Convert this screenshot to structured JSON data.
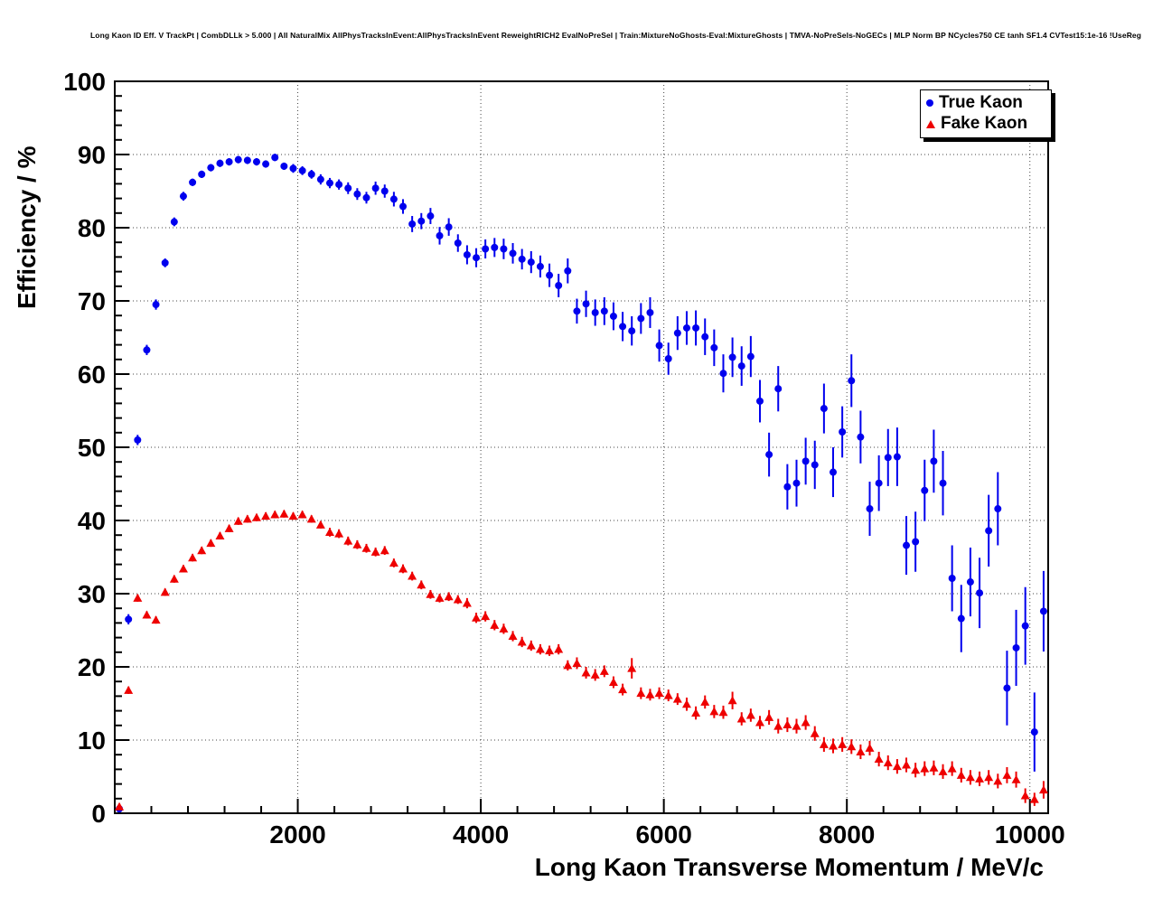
{
  "chart_data": {
    "type": "scatter",
    "title": "Long Kaon ID Eff. V TrackPt | CombDLLk > 5.000 | All NaturalMix AllPhysTracksInEvent:AllPhysTracksInEvent ReweightRICH2 EvalNoPreSel | Train:MixtureNoGhosts-Eval:MixtureGhosts | TMVA-NoPreSels-NoGECs | MLP Norm BP NCycles750 CE tanh SF1.4 CVTest15:1e-16 !UseReg",
    "xlabel": "Long Kaon Transverse Momentum / MeV/c",
    "ylabel": "Efficiency / %",
    "xlim": [
      0,
      10200
    ],
    "ylim": [
      0,
      100
    ],
    "xticks": [
      2000,
      4000,
      6000,
      8000,
      10000
    ],
    "xtick_labels": [
      "2000",
      "4000",
      "6000",
      "8000",
      "10000"
    ],
    "yticks": [
      0,
      10,
      20,
      30,
      40,
      50,
      60,
      70,
      80,
      90,
      100
    ],
    "ytick_labels": [
      "0",
      "10",
      "20",
      "30",
      "40",
      "50",
      "60",
      "70",
      "80",
      "90",
      "100"
    ],
    "x_minor_step": 400,
    "y_minor_step": 2,
    "grid": "dotted",
    "legend_position": "top-right",
    "series": [
      {
        "name": "True Kaon",
        "marker": "circle",
        "color": "#0000ee",
        "points": [
          [
            50,
            0.6,
            0.4
          ],
          [
            150,
            26.5,
            0.7
          ],
          [
            250,
            51.0,
            0.7
          ],
          [
            350,
            63.3,
            0.7
          ],
          [
            450,
            69.5,
            0.7
          ],
          [
            550,
            75.2,
            0.6
          ],
          [
            650,
            80.8,
            0.6
          ],
          [
            750,
            84.3,
            0.6
          ],
          [
            850,
            86.2,
            0.5
          ],
          [
            950,
            87.3,
            0.5
          ],
          [
            1050,
            88.2,
            0.5
          ],
          [
            1150,
            88.8,
            0.5
          ],
          [
            1250,
            89.0,
            0.5
          ],
          [
            1350,
            89.3,
            0.5
          ],
          [
            1450,
            89.2,
            0.5
          ],
          [
            1550,
            89.0,
            0.5
          ],
          [
            1650,
            88.7,
            0.5
          ],
          [
            1750,
            89.6,
            0.5
          ],
          [
            1850,
            88.4,
            0.5
          ],
          [
            1950,
            88.1,
            0.6
          ],
          [
            2050,
            87.8,
            0.6
          ],
          [
            2150,
            87.3,
            0.6
          ],
          [
            2250,
            86.6,
            0.7
          ],
          [
            2350,
            86.1,
            0.7
          ],
          [
            2450,
            85.9,
            0.7
          ],
          [
            2550,
            85.4,
            0.8
          ],
          [
            2650,
            84.6,
            0.8
          ],
          [
            2750,
            84.1,
            0.8
          ],
          [
            2850,
            85.4,
            0.9
          ],
          [
            2950,
            85.0,
            0.9
          ],
          [
            3050,
            83.9,
            1.0
          ],
          [
            3150,
            82.9,
            1.0
          ],
          [
            3250,
            80.5,
            1.1
          ],
          [
            3350,
            80.9,
            1.1
          ],
          [
            3450,
            81.6,
            1.1
          ],
          [
            3550,
            78.9,
            1.2
          ],
          [
            3650,
            80.1,
            1.2
          ],
          [
            3750,
            77.9,
            1.2
          ],
          [
            3850,
            76.3,
            1.3
          ],
          [
            3950,
            75.9,
            1.3
          ],
          [
            4050,
            77.1,
            1.3
          ],
          [
            4150,
            77.3,
            1.3
          ],
          [
            4250,
            77.1,
            1.4
          ],
          [
            4350,
            76.5,
            1.4
          ],
          [
            4450,
            75.7,
            1.4
          ],
          [
            4550,
            75.3,
            1.5
          ],
          [
            4650,
            74.7,
            1.5
          ],
          [
            4750,
            73.5,
            1.6
          ],
          [
            4850,
            72.1,
            1.6
          ],
          [
            4950,
            74.1,
            1.7
          ],
          [
            5050,
            68.6,
            1.7
          ],
          [
            5150,
            69.6,
            1.8
          ],
          [
            5250,
            68.4,
            1.8
          ],
          [
            5350,
            68.6,
            1.9
          ],
          [
            5450,
            67.9,
            1.9
          ],
          [
            5550,
            66.5,
            2.0
          ],
          [
            5650,
            65.9,
            2.0
          ],
          [
            5750,
            67.6,
            2.1
          ],
          [
            5850,
            68.4,
            2.1
          ],
          [
            5950,
            63.9,
            2.2
          ],
          [
            6050,
            62.1,
            2.2
          ],
          [
            6150,
            65.6,
            2.3
          ],
          [
            6250,
            66.3,
            2.3
          ],
          [
            6350,
            66.3,
            2.4
          ],
          [
            6450,
            65.1,
            2.5
          ],
          [
            6550,
            63.6,
            2.5
          ],
          [
            6650,
            60.1,
            2.6
          ],
          [
            6750,
            62.3,
            2.7
          ],
          [
            6850,
            61.1,
            2.7
          ],
          [
            6950,
            62.4,
            2.8
          ],
          [
            7050,
            56.3,
            2.9
          ],
          [
            7150,
            49.0,
            3.0
          ],
          [
            7250,
            58.0,
            3.1
          ],
          [
            7350,
            44.6,
            3.1
          ],
          [
            7450,
            45.1,
            3.2
          ],
          [
            7550,
            48.1,
            3.2
          ],
          [
            7650,
            47.6,
            3.3
          ],
          [
            7750,
            55.3,
            3.4
          ],
          [
            7850,
            46.6,
            3.4
          ],
          [
            7950,
            52.1,
            3.5
          ],
          [
            8050,
            59.1,
            3.6
          ],
          [
            8150,
            51.4,
            3.6
          ],
          [
            8250,
            41.6,
            3.7
          ],
          [
            8350,
            45.1,
            3.8
          ],
          [
            8450,
            48.6,
            3.9
          ],
          [
            8550,
            48.7,
            4.0
          ],
          [
            8650,
            36.6,
            4.0
          ],
          [
            8750,
            37.1,
            4.1
          ],
          [
            8850,
            44.1,
            4.2
          ],
          [
            8950,
            48.1,
            4.3
          ],
          [
            9050,
            45.1,
            4.4
          ],
          [
            9150,
            32.1,
            4.5
          ],
          [
            9250,
            26.6,
            4.6
          ],
          [
            9350,
            31.6,
            4.7
          ],
          [
            9450,
            30.1,
            4.8
          ],
          [
            9550,
            38.6,
            4.9
          ],
          [
            9650,
            41.6,
            5.0
          ],
          [
            9750,
            17.1,
            5.1
          ],
          [
            9850,
            22.6,
            5.2
          ],
          [
            9950,
            25.6,
            5.3
          ],
          [
            10050,
            11.1,
            5.4
          ],
          [
            10150,
            27.6,
            5.5
          ]
        ]
      },
      {
        "name": "Fake Kaon",
        "marker": "triangle",
        "color": "#ee0000",
        "points": [
          [
            50,
            0.9,
            0.4
          ],
          [
            150,
            16.8,
            0.5
          ],
          [
            250,
            29.4,
            0.5
          ],
          [
            350,
            27.1,
            0.5
          ],
          [
            450,
            26.4,
            0.5
          ],
          [
            550,
            30.2,
            0.5
          ],
          [
            650,
            32.0,
            0.5
          ],
          [
            750,
            33.4,
            0.5
          ],
          [
            850,
            34.9,
            0.5
          ],
          [
            950,
            35.9,
            0.5
          ],
          [
            1050,
            36.9,
            0.5
          ],
          [
            1150,
            37.9,
            0.5
          ],
          [
            1250,
            38.9,
            0.5
          ],
          [
            1350,
            39.9,
            0.5
          ],
          [
            1450,
            40.2,
            0.5
          ],
          [
            1550,
            40.4,
            0.5
          ],
          [
            1650,
            40.6,
            0.5
          ],
          [
            1750,
            40.8,
            0.5
          ],
          [
            1850,
            40.9,
            0.5
          ],
          [
            1950,
            40.6,
            0.5
          ],
          [
            2050,
            40.8,
            0.5
          ],
          [
            2150,
            40.2,
            0.5
          ],
          [
            2250,
            39.4,
            0.5
          ],
          [
            2350,
            38.4,
            0.6
          ],
          [
            2450,
            38.2,
            0.6
          ],
          [
            2550,
            37.2,
            0.6
          ],
          [
            2650,
            36.7,
            0.6
          ],
          [
            2750,
            36.2,
            0.6
          ],
          [
            2850,
            35.7,
            0.6
          ],
          [
            2950,
            35.9,
            0.6
          ],
          [
            3050,
            34.2,
            0.6
          ],
          [
            3150,
            33.4,
            0.6
          ],
          [
            3250,
            32.4,
            0.6
          ],
          [
            3350,
            31.2,
            0.6
          ],
          [
            3450,
            29.9,
            0.6
          ],
          [
            3550,
            29.4,
            0.6
          ],
          [
            3650,
            29.6,
            0.6
          ],
          [
            3750,
            29.2,
            0.6
          ],
          [
            3850,
            28.7,
            0.7
          ],
          [
            3950,
            26.7,
            0.7
          ],
          [
            4050,
            26.9,
            0.7
          ],
          [
            4150,
            25.7,
            0.7
          ],
          [
            4250,
            25.2,
            0.7
          ],
          [
            4350,
            24.2,
            0.7
          ],
          [
            4450,
            23.4,
            0.7
          ],
          [
            4550,
            22.9,
            0.7
          ],
          [
            4650,
            22.4,
            0.7
          ],
          [
            4750,
            22.2,
            0.7
          ],
          [
            4850,
            22.4,
            0.7
          ],
          [
            4950,
            20.2,
            0.7
          ],
          [
            5050,
            20.5,
            0.8
          ],
          [
            5150,
            19.2,
            0.8
          ],
          [
            5250,
            18.9,
            0.8
          ],
          [
            5350,
            19.4,
            0.8
          ],
          [
            5450,
            17.9,
            0.8
          ],
          [
            5550,
            16.9,
            0.8
          ],
          [
            5650,
            19.8,
            1.4
          ],
          [
            5750,
            16.4,
            0.8
          ],
          [
            5850,
            16.2,
            0.8
          ],
          [
            5950,
            16.4,
            0.8
          ],
          [
            6050,
            16.1,
            0.8
          ],
          [
            6150,
            15.6,
            0.8
          ],
          [
            6250,
            14.9,
            0.9
          ],
          [
            6350,
            13.7,
            0.9
          ],
          [
            6450,
            15.2,
            0.9
          ],
          [
            6550,
            13.9,
            0.9
          ],
          [
            6650,
            13.8,
            0.9
          ],
          [
            6750,
            15.4,
            1.2
          ],
          [
            6850,
            12.9,
            0.9
          ],
          [
            6950,
            13.4,
            0.9
          ],
          [
            7050,
            12.4,
            0.9
          ],
          [
            7150,
            13.1,
            1.0
          ],
          [
            7250,
            11.9,
            1.0
          ],
          [
            7350,
            12.1,
            1.0
          ],
          [
            7450,
            11.9,
            1.0
          ],
          [
            7550,
            12.4,
            1.0
          ],
          [
            7650,
            10.9,
            1.0
          ],
          [
            7750,
            9.4,
            1.0
          ],
          [
            7850,
            9.2,
            1.0
          ],
          [
            7950,
            9.4,
            1.0
          ],
          [
            8050,
            9.1,
            1.0
          ],
          [
            8150,
            8.4,
            1.0
          ],
          [
            8250,
            8.9,
            1.0
          ],
          [
            8350,
            7.4,
            1.0
          ],
          [
            8450,
            6.9,
            1.0
          ],
          [
            8550,
            6.4,
            1.0
          ],
          [
            8650,
            6.6,
            1.0
          ],
          [
            8750,
            5.9,
            1.0
          ],
          [
            8850,
            6.1,
            1.0
          ],
          [
            8950,
            6.2,
            1.0
          ],
          [
            9050,
            5.7,
            1.0
          ],
          [
            9150,
            6.1,
            1.0
          ],
          [
            9250,
            5.2,
            1.0
          ],
          [
            9350,
            4.9,
            1.0
          ],
          [
            9450,
            4.7,
            1.0
          ],
          [
            9550,
            4.9,
            1.0
          ],
          [
            9650,
            4.4,
            1.0
          ],
          [
            9750,
            5.2,
            1.1
          ],
          [
            9850,
            4.6,
            1.1
          ],
          [
            9950,
            2.4,
            1.0
          ],
          [
            10050,
            1.9,
            0.9
          ],
          [
            10150,
            3.2,
            1.2
          ]
        ]
      }
    ]
  }
}
